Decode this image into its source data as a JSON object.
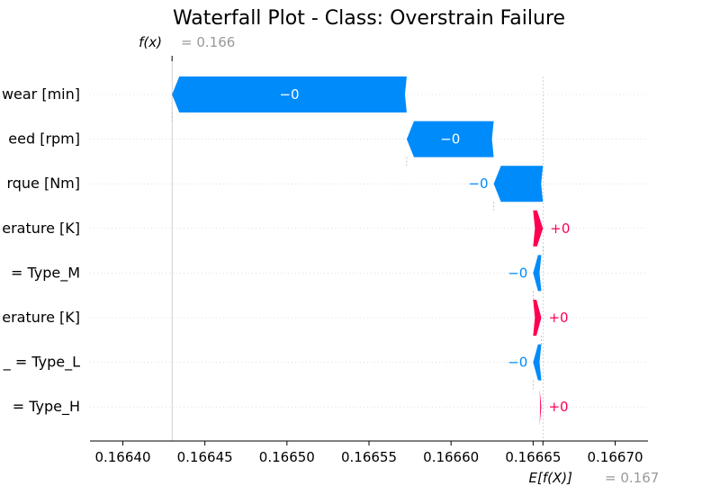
{
  "chart_data": {
    "type": "waterfall",
    "title": "Waterfall Plot - Class: Overstrain Failure",
    "fx_label": "f(x)",
    "fx_value": "= 0.166",
    "efx_label": "E[f(X)]",
    "efx_value": "= 0.167",
    "fx": 0.16643,
    "base_value": 0.166656,
    "xlim": [
      0.16638,
      0.16672
    ],
    "xticks": [
      "0.16640",
      "0.16645",
      "0.16650",
      "0.16655",
      "0.16660",
      "0.16665",
      "0.16670"
    ],
    "xtick_values": [
      0.1664,
      0.16645,
      0.1665,
      0.16655,
      0.1666,
      0.16665,
      0.1667
    ],
    "grid": true,
    "colors": {
      "positive": "#ff0051",
      "negative": "#008bfb",
      "text": "#000000",
      "muted": "#999999"
    },
    "features": [
      {
        "name": "wear [min]",
        "start": 0.166573,
        "end": 0.16643,
        "label": "−0"
      },
      {
        "name": "eed [rpm]",
        "start": 0.166626,
        "end": 0.166573,
        "label": "−0"
      },
      {
        "name": "rque [Nm]",
        "start": 0.166656,
        "end": 0.166626,
        "label": "−0"
      },
      {
        "name": "erature [K]",
        "start": 0.16665,
        "end": 0.166656,
        "label": "+0"
      },
      {
        "name": "= Type_M",
        "start": 0.166655,
        "end": 0.16665,
        "label": "−0"
      },
      {
        "name": "erature [K]",
        "start": 0.16665,
        "end": 0.166655,
        "label": "+0"
      },
      {
        "name": "_ = Type_L",
        "start": 0.166655,
        "end": 0.16665,
        "label": "−0"
      },
      {
        "name": "= Type_H",
        "start": 0.166654,
        "end": 0.166655,
        "label": "+0"
      }
    ]
  }
}
